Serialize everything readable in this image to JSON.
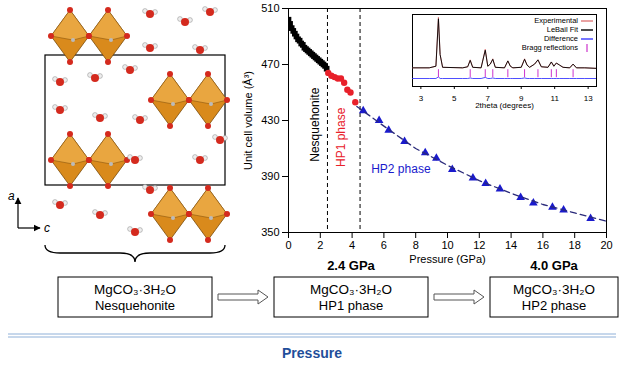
{
  "chart_data": [
    {
      "type": "scatter",
      "x_label": "Pressure (GPa)",
      "y_label": "Unit cell volume (Å³)",
      "xlim": [
        0,
        20
      ],
      "xticks": [
        0,
        2,
        4,
        6,
        8,
        10,
        12,
        14,
        16,
        18,
        20
      ],
      "ylim": [
        350,
        510
      ],
      "yticks": [
        350,
        390,
        430,
        470,
        510
      ],
      "grid": false,
      "vlines": [
        2.45,
        4.5
      ],
      "series": [
        {
          "name": "Nesquehonite",
          "color": "#000000",
          "marker": "square",
          "x": [
            0,
            0.1,
            0.2,
            0.3,
            0.4,
            0.5,
            0.6,
            0.7,
            0.8,
            0.9,
            1.0,
            1.1,
            1.2,
            1.3,
            1.4,
            1.5,
            1.6,
            1.7,
            1.8,
            1.9,
            2.0,
            2.1,
            2.2,
            2.3,
            2.4
          ],
          "values": [
            502,
            499,
            496,
            494,
            492,
            490,
            488,
            487,
            485,
            484,
            482,
            481,
            480,
            479,
            478,
            477,
            476,
            475,
            474,
            473,
            472,
            471,
            470,
            469,
            467
          ]
        },
        {
          "name": "HP1 phase",
          "color": "#e8202a",
          "marker": "circle",
          "x": [
            2.5,
            2.7,
            2.9,
            3.1,
            3.3,
            3.5,
            3.7,
            3.9,
            4.2
          ],
          "values": [
            464,
            462,
            461,
            460,
            460,
            457,
            452,
            450,
            443
          ]
        },
        {
          "name": "HP2 phase",
          "color": "#1a1acc",
          "marker": "triangle",
          "x": [
            4.7,
            5.7,
            6.3,
            7.3,
            8.6,
            9.3,
            10.3,
            11.6,
            12.4,
            13.3,
            14.6,
            15.4,
            16.6,
            17.3,
            19.0
          ],
          "values": [
            437,
            430,
            423,
            415,
            407,
            403,
            395,
            389,
            385,
            381,
            375,
            371,
            368,
            366,
            360
          ]
        },
        {
          "type": "line",
          "line_style": "dashed",
          "color": "#2a2a7a",
          "x": [
            4.3,
            6,
            8,
            10,
            12,
            14,
            16,
            18,
            20
          ],
          "values": [
            440,
            426,
            410,
            398,
            387,
            378,
            370,
            364,
            358
          ]
        }
      ]
    },
    {
      "type": "line",
      "x_label": "2theta (degrees)",
      "xlim": [
        2.5,
        13.5
      ],
      "xticks": [
        3,
        5,
        7,
        9,
        11,
        13
      ],
      "ylim": [
        -0.3,
        1.05
      ],
      "tick_labels": "x",
      "legend": "top-right",
      "x": [
        2.5,
        3.5,
        3.9,
        4.05,
        4.15,
        4.3,
        5.5,
        5.8,
        5.95,
        6.1,
        6.6,
        6.85,
        7.0,
        7.15,
        7.3,
        7.45,
        8.0,
        8.2,
        8.35,
        8.5,
        9.0,
        9.2,
        9.35,
        9.5,
        9.8,
        10.0,
        10.2,
        10.6,
        10.8,
        10.95,
        11.1,
        11.3,
        11.5,
        11.9,
        12.1,
        12.3,
        12.8,
        13.5
      ],
      "series": [
        {
          "name": "Experimental",
          "color": "#e07a7a",
          "values": [
            0.05,
            0.05,
            0.08,
            1.0,
            0.3,
            0.06,
            0.05,
            0.07,
            0.2,
            0.06,
            0.05,
            0.4,
            0.08,
            0.12,
            0.22,
            0.06,
            0.05,
            0.18,
            0.08,
            0.05,
            0.06,
            0.22,
            0.1,
            0.06,
            0.12,
            0.2,
            0.07,
            0.06,
            0.16,
            0.08,
            0.14,
            0.1,
            0.06,
            0.05,
            0.12,
            0.05,
            0.05,
            0.04
          ]
        },
        {
          "name": "LeBail Fit",
          "color": "#000000",
          "values": [
            0.05,
            0.05,
            0.08,
            0.97,
            0.3,
            0.06,
            0.05,
            0.07,
            0.19,
            0.06,
            0.05,
            0.38,
            0.08,
            0.12,
            0.21,
            0.06,
            0.05,
            0.18,
            0.08,
            0.05,
            0.06,
            0.21,
            0.1,
            0.06,
            0.12,
            0.2,
            0.07,
            0.06,
            0.16,
            0.08,
            0.14,
            0.1,
            0.06,
            0.05,
            0.12,
            0.05,
            0.05,
            0.04
          ]
        },
        {
          "name": "Difference",
          "color": "#3b3bff",
          "values": [
            -0.15,
            -0.15,
            -0.15,
            -0.12,
            -0.15,
            -0.15,
            -0.15,
            -0.15,
            -0.14,
            -0.15,
            -0.15,
            -0.13,
            -0.15,
            -0.15,
            -0.14,
            -0.15,
            -0.15,
            -0.15,
            -0.15,
            -0.15,
            -0.15,
            -0.14,
            -0.15,
            -0.15,
            -0.15,
            -0.15,
            -0.15,
            -0.15,
            -0.15,
            -0.15,
            -0.15,
            -0.15,
            -0.15,
            -0.15,
            -0.15,
            -0.15,
            -0.15,
            -0.15
          ]
        },
        {
          "name": "Bragg reflections",
          "color": "#cc33cc",
          "marker": "tick",
          "x": [
            4.05,
            5.95,
            6.85,
            7.3,
            8.2,
            9.2,
            10.0,
            10.8,
            11.1,
            12.1
          ],
          "values": [
            -0.06,
            -0.06,
            -0.06,
            -0.06,
            -0.06,
            -0.06,
            -0.06,
            -0.06,
            -0.06,
            -0.06
          ]
        }
      ]
    }
  ],
  "structure": {
    "axis_labels": {
      "vertical": "a",
      "horizontal": "c"
    }
  },
  "flow": {
    "stages": [
      {
        "formula": "MgCO₃·3H₂O",
        "name": "Nesquehonite"
      },
      {
        "pressure": "2.4 GPa",
        "formula": "MgCO₃·3H₂O",
        "name": "HP1 phase"
      },
      {
        "pressure": "4.0 GPa",
        "formula": "MgCO₃·3H₂O",
        "name": "HP2 phase"
      }
    ],
    "axis_label": "Pressure"
  }
}
